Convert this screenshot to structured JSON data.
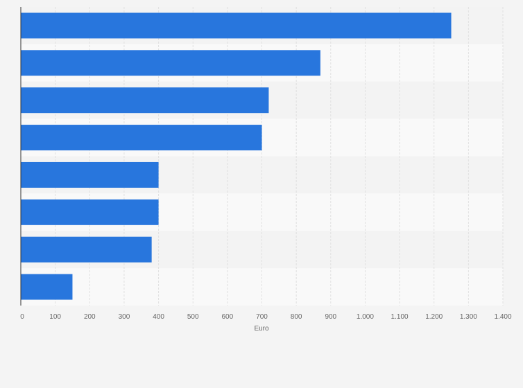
{
  "chart_data": {
    "type": "bar",
    "orientation": "horizontal",
    "categories": [
      "",
      "",
      "",
      "",
      "",
      "",
      "",
      ""
    ],
    "values": [
      1250,
      870,
      720,
      700,
      400,
      400,
      380,
      150
    ],
    "xlabel": "Euro",
    "ylabel": "",
    "xlim": [
      0,
      1400
    ],
    "x_ticks": [
      0,
      100,
      200,
      300,
      400,
      500,
      600,
      700,
      800,
      900,
      1000,
      1100,
      1200,
      1300,
      1400
    ],
    "x_tick_labels": [
      "0",
      "100",
      "200",
      "300",
      "400",
      "500",
      "600",
      "700",
      "800",
      "900",
      "1.000",
      "1.100",
      "1.200",
      "1.300",
      "1.400"
    ],
    "grid": true,
    "legend": "none",
    "colors": {
      "bar": "#2876dd",
      "background": "#f4f4f4",
      "band_light": "#f9f9f9",
      "band_dark": "#f3f3f3",
      "grid": "#e0e0e0",
      "axis": "#333333"
    }
  }
}
